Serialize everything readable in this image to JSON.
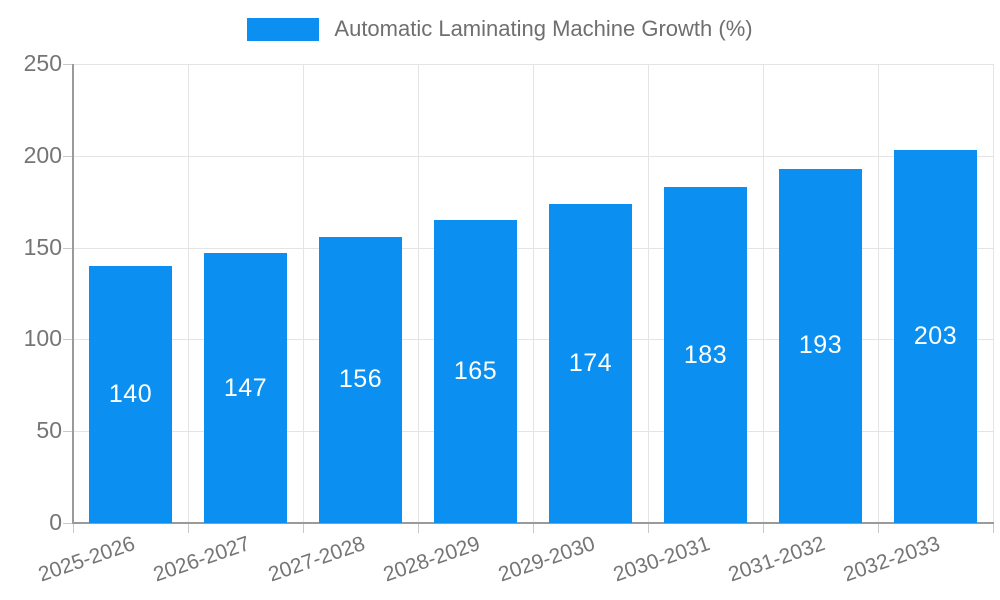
{
  "page": {
    "background_color": "#ffffff"
  },
  "legend": {
    "swatch_color": "#0b90f1",
    "text_color": "#6f6f6f"
  },
  "chart_data": {
    "type": "bar",
    "title": "Automatic Laminating Machine Growth (%)",
    "xlabel": "",
    "ylabel": "",
    "categories": [
      "2025-2026",
      "2026-2027",
      "2027-2028",
      "2028-2029",
      "2029-2030",
      "2030-2031",
      "2031-2032",
      "2032-2033"
    ],
    "values": [
      140,
      147,
      156,
      165,
      174,
      183,
      193,
      203
    ],
    "ylim": [
      0,
      250
    ],
    "yticks": [
      0,
      50,
      100,
      150,
      200,
      250
    ],
    "grid": true,
    "legend_position": "top-center",
    "bar_color": "#0b90f1",
    "bar_label_color": "#ffffff",
    "axis_text_color": "#757575",
    "grid_color": "#e4e4e4",
    "axis_line_color": "#9a9a9a",
    "tick_color": "#c9c9c9",
    "x_label_rotation_deg": -19
  }
}
